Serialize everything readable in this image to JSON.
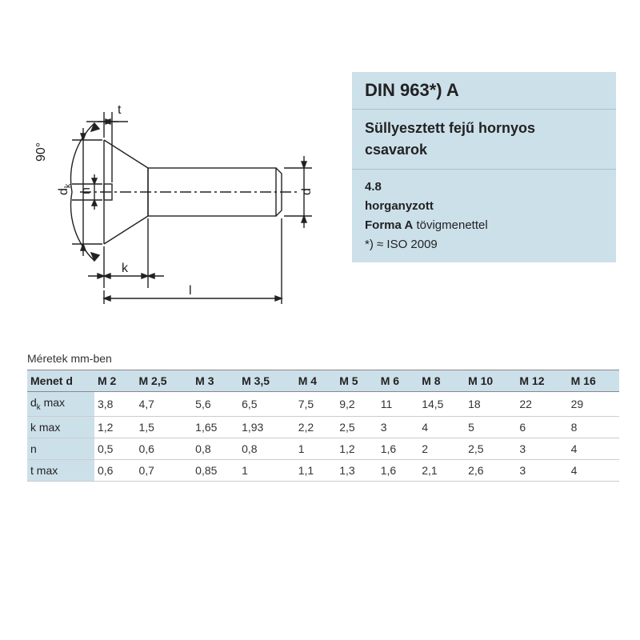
{
  "diagram": {
    "angle_label": "90°",
    "dim_t": "t",
    "dim_dk": "d",
    "dim_dk_sub": "k",
    "dim_n": "n",
    "dim_k": "k",
    "dim_l": "l",
    "dim_d": "d",
    "stroke": "#222222",
    "stroke_w": 1.4
  },
  "info": {
    "title": "DIN 963*) A",
    "subtitle_l1": "Süllyesztett fejű hornyos",
    "subtitle_l2": "csavarok",
    "grade": "4.8",
    "finish": "horganyzott",
    "forma_b": "Forma A",
    "forma_rest": " tövigmenettel",
    "iso": "*) ≈ ISO 2009"
  },
  "table": {
    "units": "Méretek mm-ben",
    "header_label": "Menet d",
    "columns": [
      "M 2",
      "M 2,5",
      "M 3",
      "M 3,5",
      "M 4",
      "M 5",
      "M 6",
      "M 8",
      "M 10",
      "M 12",
      "M 16"
    ],
    "rows": [
      {
        "label": "d<sub>k</sub> max",
        "vals": [
          "3,8",
          "4,7",
          "5,6",
          "6,5",
          "7,5",
          "9,2",
          "11",
          "14,5",
          "18",
          "22",
          "29"
        ]
      },
      {
        "label": "k max",
        "vals": [
          "1,2",
          "1,5",
          "1,65",
          "1,93",
          "2,2",
          "2,5",
          "3",
          "4",
          "5",
          "6",
          "8"
        ]
      },
      {
        "label": "n",
        "vals": [
          "0,5",
          "0,6",
          "0,8",
          "0,8",
          "1",
          "1,2",
          "1,6",
          "2",
          "2,5",
          "3",
          "4"
        ]
      },
      {
        "label": "t max",
        "vals": [
          "0,6",
          "0,7",
          "0,85",
          "1",
          "1,1",
          "1,3",
          "1,6",
          "2,1",
          "2,6",
          "3",
          "4"
        ]
      }
    ],
    "header_bg": "#cce0ea",
    "border": "#888888"
  },
  "colors": {
    "panel_bg": "#cce0ea"
  }
}
